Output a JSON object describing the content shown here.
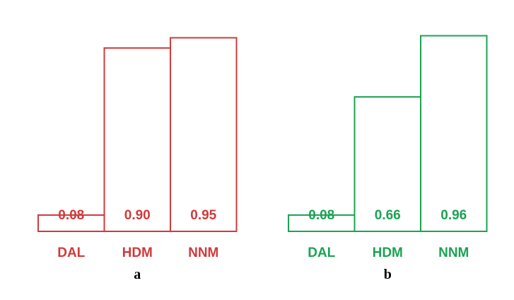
{
  "chart_data": [
    {
      "type": "bar",
      "panel_label": "a",
      "color": "#d03a3a",
      "categories": [
        "DAL",
        "HDM",
        "NNM"
      ],
      "values": [
        0.08,
        0.9,
        0.95
      ],
      "value_labels": [
        "0.08",
        "0.90",
        "0.95"
      ],
      "ylim": [
        0,
        1
      ],
      "grid": false,
      "legend": "none"
    },
    {
      "type": "bar",
      "panel_label": "b",
      "color": "#1aa352",
      "categories": [
        "DAL",
        "HDM",
        "NNM"
      ],
      "values": [
        0.08,
        0.66,
        0.96
      ],
      "value_labels": [
        "0.08",
        "0.66",
        "0.96"
      ],
      "ylim": [
        0,
        1
      ],
      "grid": false,
      "legend": "none"
    }
  ]
}
